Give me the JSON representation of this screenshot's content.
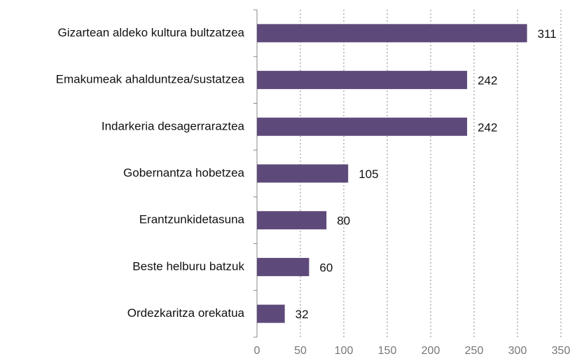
{
  "chart_data": {
    "type": "bar",
    "orientation": "horizontal",
    "categories": [
      "Gizartean aldeko kultura bultzatzea",
      "Emakumeak ahalduntzea/sustatzea",
      "Indarkeria desagerraraztea",
      "Gobernantza hobetzea",
      "Erantzunkidetasuna",
      "Beste helburu batzuk",
      "Ordezkaritza orekatua"
    ],
    "values": [
      311,
      242,
      242,
      105,
      80,
      60,
      32
    ],
    "color": "#5e4a7a",
    "xlim": [
      0,
      350
    ],
    "xticks": [
      0,
      50,
      100,
      150,
      200,
      250,
      300,
      350
    ],
    "grid": true
  }
}
